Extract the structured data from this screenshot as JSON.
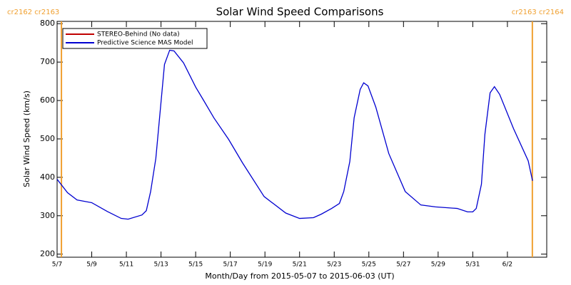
{
  "chart_data": {
    "type": "line",
    "title": "Solar Wind Speed Comparisons",
    "xlabel": "Month/Day from 2015-05-07 to 2015-06-03 (UT)",
    "ylabel": "Solar Wind Speed (km/s)",
    "xlim": [
      0,
      28.27
    ],
    "ylim": [
      192,
      806
    ],
    "xticks": [
      {
        "value": 0,
        "label": "5/7"
      },
      {
        "value": 2,
        "label": "5/9"
      },
      {
        "value": 4,
        "label": "5/11"
      },
      {
        "value": 6,
        "label": "5/13"
      },
      {
        "value": 8,
        "label": "5/15"
      },
      {
        "value": 10,
        "label": "5/17"
      },
      {
        "value": 12,
        "label": "5/19"
      },
      {
        "value": 14,
        "label": "5/21"
      },
      {
        "value": 16,
        "label": "5/23"
      },
      {
        "value": 18,
        "label": "5/25"
      },
      {
        "value": 20,
        "label": "5/27"
      },
      {
        "value": 22,
        "label": "5/29"
      },
      {
        "value": 24,
        "label": "5/31"
      },
      {
        "value": 26,
        "label": "6/2"
      }
    ],
    "yticks": [
      200,
      300,
      400,
      500,
      600,
      700,
      800
    ],
    "legend_position": "upper-left",
    "annotations": [
      {
        "text": "cr2162 cr2163",
        "x": 0.25,
        "color": "#f0a030"
      },
      {
        "text": "cr2163 cr2164",
        "x": 27.44,
        "color": "#f0a030"
      }
    ],
    "series": [
      {
        "name": "STEREO-Behind (No data)",
        "color": "#c00000",
        "x": [],
        "values": []
      },
      {
        "name": "Predictive Science MAS Model",
        "color": "#0000d0",
        "x": [
          0,
          0.6,
          1.15,
          2,
          2.9,
          3.7,
          4.1,
          4.9,
          5.15,
          5.4,
          5.7,
          6.2,
          6.5,
          6.75,
          7.3,
          8,
          8.45,
          9.05,
          9.9,
          10.7,
          11.95,
          13.2,
          14,
          14.8,
          15.25,
          15.85,
          16.3,
          16.55,
          16.9,
          17.15,
          17.5,
          17.7,
          17.95,
          18.4,
          19.15,
          20.1,
          21,
          21.85,
          23.1,
          23.7,
          24,
          24.2,
          24.5,
          24.7,
          25,
          25.25,
          25.55,
          26.35,
          27.2,
          27.45
        ],
        "values": [
          395,
          360,
          341,
          334,
          311,
          293,
          291,
          302,
          313,
          363,
          449,
          694,
          731,
          729,
          698,
          635,
          601,
          555,
          499,
          438,
          350,
          307,
          293,
          295,
          304,
          319,
          332,
          363,
          441,
          555,
          629,
          646,
          638,
          583,
          462,
          363,
          328,
          323,
          319,
          310,
          310,
          319,
          382,
          512,
          620,
          636,
          616,
          527,
          443,
          391
        ]
      }
    ]
  }
}
